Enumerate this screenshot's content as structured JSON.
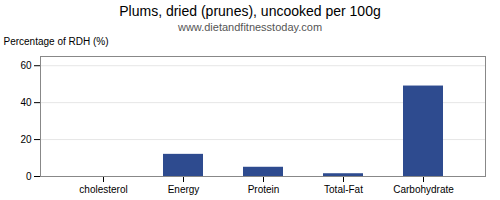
{
  "chart_data": {
    "type": "bar",
    "title": "Plums, dried (prunes), uncooked per 100g",
    "subtitle": "www.dietandfitnesstoday.com",
    "categories": [
      "cholesterol",
      "Energy",
      "Protein",
      "Total-Fat",
      "Carbohydrate"
    ],
    "values": [
      0,
      12,
      5,
      1.5,
      49
    ],
    "color": "#2e4b8f",
    "ylabel": "Percentage of RDH (%)",
    "ylim": [
      0,
      65
    ],
    "yticks": [
      0,
      20,
      40,
      60
    ],
    "grid": true
  }
}
